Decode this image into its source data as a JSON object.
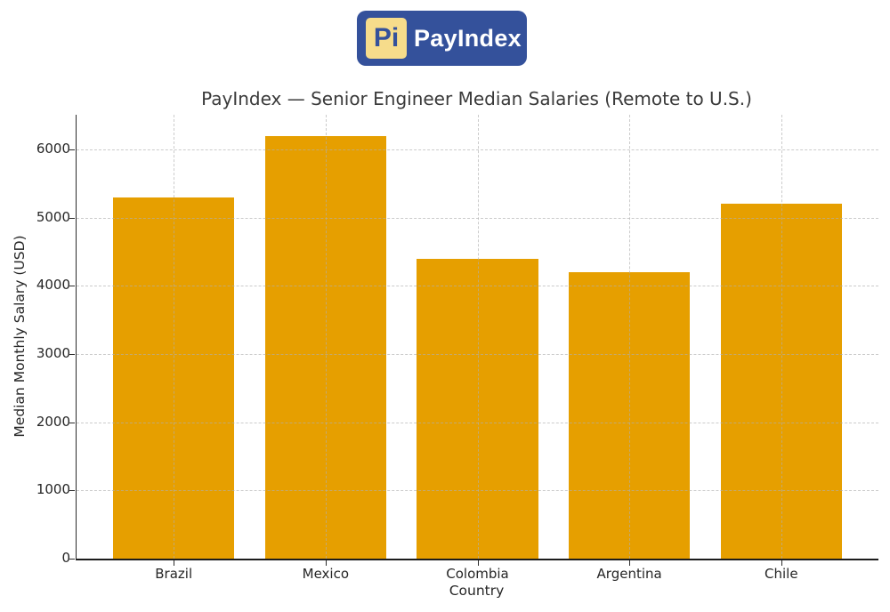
{
  "header": {
    "logo": {
      "mark": "Pi",
      "name": "PayIndex",
      "badge_color": "#34519B",
      "mark_bg": "#F6DC8B",
      "mark_text_color": "#34519B",
      "name_color": "#ffffff"
    }
  },
  "chart_data": {
    "type": "bar",
    "title": "PayIndex — Senior Engineer Median Salaries (Remote to U.S.)",
    "categories": [
      "Brazil",
      "Mexico",
      "Colombia",
      "Argentina",
      "Chile"
    ],
    "values": [
      5300,
      6200,
      4400,
      4200,
      5200
    ],
    "xlabel": "Country",
    "ylabel": "Median Monthly Salary (USD)",
    "yticks": [
      0,
      1000,
      2000,
      3000,
      4000,
      5000,
      6000
    ],
    "ylim": [
      0,
      6510
    ],
    "xlim": [
      -0.64,
      4.64
    ],
    "bar_width": 0.8,
    "bar_color": "#E69F00",
    "grid": "dashed-both-axes",
    "legend": "none",
    "spines": [
      "left",
      "bottom"
    ]
  }
}
